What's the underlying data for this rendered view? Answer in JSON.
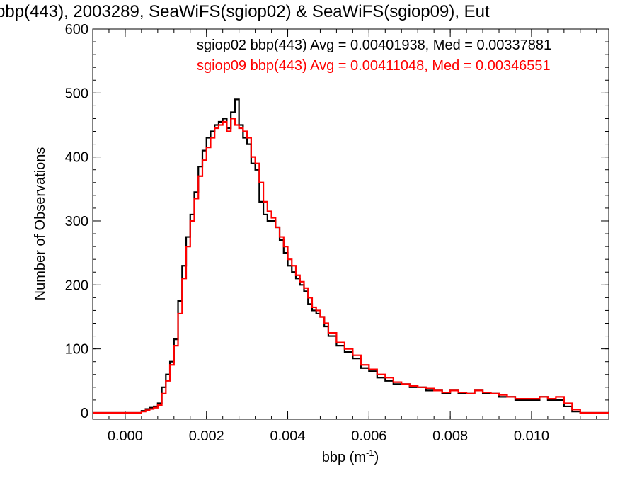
{
  "chart_data": {
    "type": "line",
    "title": "bbp(443), 2003289, SeaWiFS(sgiop02) & SeaWiFS(sgiop09), Eut",
    "xlabel": "bbp (m",
    "xlabel_sup": "-1",
    "xlabel_end": ")",
    "ylabel": "Number of Observations",
    "xlim": [
      -0.0008,
      0.0119
    ],
    "ylim": [
      -10,
      600
    ],
    "x_ticks": [
      0.0,
      0.002,
      0.004,
      0.006,
      0.008,
      0.01
    ],
    "x_tick_labels": [
      "0.000",
      "0.002",
      "0.004",
      "0.006",
      "0.008",
      "0.010"
    ],
    "y_ticks": [
      0,
      100,
      200,
      300,
      400,
      500,
      600
    ],
    "y_tick_labels": [
      "0",
      "100",
      "200",
      "300",
      "400",
      "500",
      "600"
    ],
    "grid": false,
    "legend_position": "top-right",
    "series": [
      {
        "name": "sgiop02 bbp(443) Avg = 0.00401938, Med = 0.00337881",
        "color": "#000000",
        "x": [
          0.0,
          0.0002,
          0.0004,
          0.0005,
          0.0006,
          0.0007,
          0.0008,
          0.0009,
          0.001,
          0.0011,
          0.0012,
          0.0013,
          0.0014,
          0.0015,
          0.0016,
          0.0017,
          0.0018,
          0.0019,
          0.002,
          0.0021,
          0.0022,
          0.0023,
          0.0024,
          0.0025,
          0.0026,
          0.0027,
          0.0028,
          0.0029,
          0.003,
          0.0031,
          0.0032,
          0.0033,
          0.0034,
          0.0035,
          0.0036,
          0.0037,
          0.0038,
          0.0039,
          0.004,
          0.0041,
          0.0042,
          0.0043,
          0.0044,
          0.0045,
          0.0046,
          0.0047,
          0.0048,
          0.0049,
          0.005,
          0.0052,
          0.0054,
          0.0056,
          0.0058,
          0.006,
          0.0062,
          0.0064,
          0.0066,
          0.0068,
          0.007,
          0.0072,
          0.0074,
          0.0076,
          0.0078,
          0.008,
          0.0082,
          0.0084,
          0.0086,
          0.0088,
          0.009,
          0.0092,
          0.0094,
          0.0096,
          0.0098,
          0.01,
          0.0102,
          0.0104,
          0.0106,
          0.0108,
          0.011,
          0.0112,
          0.0114
        ],
        "values": [
          0,
          0,
          3,
          6,
          8,
          10,
          15,
          40,
          60,
          80,
          115,
          175,
          230,
          275,
          310,
          345,
          385,
          410,
          430,
          440,
          450,
          455,
          460,
          445,
          470,
          490,
          450,
          430,
          420,
          390,
          380,
          330,
          310,
          300,
          300,
          290,
          270,
          250,
          230,
          220,
          210,
          200,
          190,
          170,
          160,
          155,
          150,
          135,
          120,
          105,
          95,
          85,
          70,
          65,
          55,
          50,
          45,
          45,
          40,
          40,
          35,
          35,
          30,
          35,
          30,
          30,
          35,
          30,
          30,
          25,
          25,
          20,
          20,
          20,
          25,
          20,
          20,
          10,
          2,
          0,
          0
        ]
      },
      {
        "name": "sgiop09 bbp(443) Avg = 0.00411048, Med = 0.00346551",
        "color": "#ff0000",
        "x": [
          0.0,
          0.0002,
          0.0004,
          0.0005,
          0.0006,
          0.0007,
          0.0008,
          0.0009,
          0.001,
          0.0011,
          0.0012,
          0.0013,
          0.0014,
          0.0015,
          0.0016,
          0.0017,
          0.0018,
          0.0019,
          0.002,
          0.0021,
          0.0022,
          0.0023,
          0.0024,
          0.0025,
          0.0026,
          0.0027,
          0.0028,
          0.0029,
          0.003,
          0.0031,
          0.0032,
          0.0033,
          0.0034,
          0.0035,
          0.0036,
          0.0037,
          0.0038,
          0.0039,
          0.004,
          0.0041,
          0.0042,
          0.0043,
          0.0044,
          0.0045,
          0.0046,
          0.0047,
          0.0048,
          0.0049,
          0.005,
          0.0052,
          0.0054,
          0.0056,
          0.0058,
          0.006,
          0.0062,
          0.0064,
          0.0066,
          0.0068,
          0.007,
          0.0072,
          0.0074,
          0.0076,
          0.0078,
          0.008,
          0.0082,
          0.0084,
          0.0086,
          0.0088,
          0.009,
          0.0092,
          0.0094,
          0.0096,
          0.0098,
          0.01,
          0.0102,
          0.0104,
          0.0106,
          0.0108,
          0.011,
          0.0112,
          0.0114
        ],
        "values": [
          0,
          0,
          2,
          4,
          6,
          8,
          12,
          30,
          50,
          75,
          105,
          155,
          210,
          260,
          300,
          335,
          370,
          395,
          415,
          430,
          445,
          450,
          455,
          440,
          460,
          450,
          445,
          440,
          430,
          400,
          390,
          360,
          330,
          315,
          305,
          290,
          275,
          260,
          240,
          230,
          215,
          205,
          195,
          180,
          165,
          160,
          150,
          140,
          125,
          110,
          100,
          90,
          75,
          68,
          60,
          55,
          48,
          45,
          42,
          40,
          38,
          35,
          32,
          35,
          32,
          30,
          35,
          32,
          30,
          28,
          25,
          22,
          22,
          22,
          25,
          22,
          25,
          15,
          5,
          0,
          0
        ]
      }
    ]
  }
}
